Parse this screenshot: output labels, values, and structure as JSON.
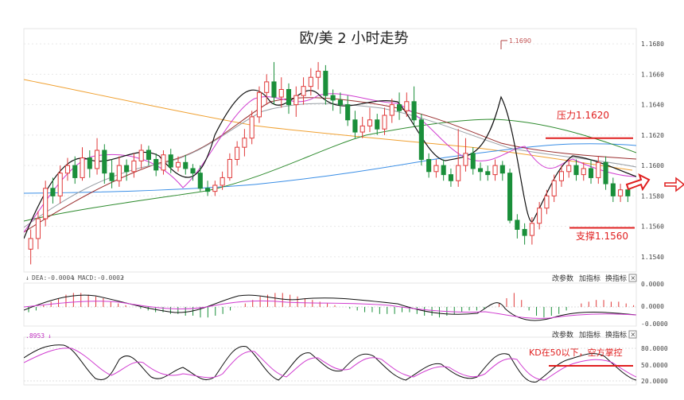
{
  "chart_data": {
    "type": "candlestick",
    "title": "欧/美 2 小时走势",
    "main": {
      "y_ticks": [
        "1.1680",
        "1.1660",
        "1.1640",
        "1.1620",
        "1.1600",
        "1.1580",
        "1.1560",
        "1.1540"
      ],
      "y_range": [
        1.153,
        1.169
      ],
      "high_marker": "1.1690",
      "resistance": {
        "label": "压力1.1620",
        "value": 1.1618
      },
      "support": {
        "label": "支撑1.1560",
        "value": 1.1559
      },
      "candles": [
        [
          1.1545,
          1.1552,
          1.1535,
          1.1558
        ],
        [
          1.1552,
          1.1565,
          1.1545,
          1.157
        ],
        [
          1.1565,
          1.1585,
          1.156,
          1.159
        ],
        [
          1.1585,
          1.158,
          1.1575,
          1.1592
        ],
        [
          1.158,
          1.1595,
          1.1575,
          1.16
        ],
        [
          1.1595,
          1.16,
          1.159,
          1.1605
        ],
        [
          1.16,
          1.1592,
          1.1588,
          1.1606
        ],
        [
          1.1592,
          1.1605,
          1.159,
          1.1612
        ],
        [
          1.1605,
          1.1598,
          1.1592,
          1.161
        ],
        [
          1.1598,
          1.161,
          1.1594,
          1.1618
        ],
        [
          1.161,
          1.1595,
          1.1588,
          1.1614
        ],
        [
          1.1595,
          1.159,
          1.1585,
          1.1604
        ],
        [
          1.159,
          1.16,
          1.1586,
          1.1606
        ],
        [
          1.16,
          1.1596,
          1.159,
          1.1604
        ],
        [
          1.1596,
          1.1603,
          1.1592,
          1.1608
        ],
        [
          1.1603,
          1.161,
          1.1598,
          1.1614
        ],
        [
          1.161,
          1.1604,
          1.16,
          1.1613
        ],
        [
          1.1604,
          1.1597,
          1.1593,
          1.1608
        ],
        [
          1.1597,
          1.1607,
          1.1594,
          1.161
        ],
        [
          1.1607,
          1.1599,
          1.1595,
          1.1611
        ],
        [
          1.1599,
          1.1602,
          1.1596,
          1.1606
        ],
        [
          1.1602,
          1.1598,
          1.1594,
          1.1607
        ],
        [
          1.1598,
          1.1595,
          1.159,
          1.1601
        ],
        [
          1.1595,
          1.1585,
          1.1583,
          1.16
        ],
        [
          1.1585,
          1.1583,
          1.158,
          1.159
        ],
        [
          1.1583,
          1.1587,
          1.158,
          1.159
        ],
        [
          1.1587,
          1.1592,
          1.1584,
          1.1596
        ],
        [
          1.1592,
          1.1604,
          1.159,
          1.1608
        ],
        [
          1.1604,
          1.1612,
          1.16,
          1.1616
        ],
        [
          1.1612,
          1.1618,
          1.1606,
          1.1624
        ],
        [
          1.1618,
          1.1632,
          1.1614,
          1.1636
        ],
        [
          1.1632,
          1.1648,
          1.1628,
          1.1652
        ],
        [
          1.1648,
          1.1655,
          1.164,
          1.166
        ],
        [
          1.1655,
          1.1645,
          1.164,
          1.1668
        ],
        [
          1.1645,
          1.165,
          1.1638,
          1.1658
        ],
        [
          1.165,
          1.164,
          1.1634,
          1.1654
        ],
        [
          1.164,
          1.1646,
          1.1632,
          1.1652
        ],
        [
          1.1646,
          1.1652,
          1.164,
          1.1658
        ],
        [
          1.1652,
          1.1658,
          1.1646,
          1.1664
        ],
        [
          1.1658,
          1.1662,
          1.165,
          1.1668
        ],
        [
          1.1662,
          1.1646,
          1.164,
          1.1666
        ],
        [
          1.1646,
          1.1643,
          1.1636,
          1.165
        ],
        [
          1.1643,
          1.164,
          1.1634,
          1.1648
        ],
        [
          1.164,
          1.163,
          1.1626,
          1.1646
        ],
        [
          1.163,
          1.1622,
          1.1618,
          1.1636
        ],
        [
          1.1622,
          1.1626,
          1.1618,
          1.1632
        ],
        [
          1.1626,
          1.163,
          1.1622,
          1.1638
        ],
        [
          1.163,
          1.1624,
          1.162,
          1.1634
        ],
        [
          1.1624,
          1.1633,
          1.162,
          1.1638
        ],
        [
          1.1633,
          1.164,
          1.1628,
          1.1644
        ],
        [
          1.164,
          1.1636,
          1.163,
          1.1648
        ],
        [
          1.1636,
          1.1642,
          1.1632,
          1.1648
        ],
        [
          1.1642,
          1.163,
          1.1626,
          1.1652
        ],
        [
          1.163,
          1.1604,
          1.16,
          1.1634
        ],
        [
          1.1604,
          1.1596,
          1.1592,
          1.1608
        ],
        [
          1.1596,
          1.16,
          1.1592,
          1.1604
        ],
        [
          1.16,
          1.1594,
          1.159,
          1.1604
        ],
        [
          1.1594,
          1.159,
          1.1586,
          1.1598
        ],
        [
          1.159,
          1.16,
          1.1586,
          1.1624
        ],
        [
          1.16,
          1.1608,
          1.1596,
          1.1618
        ],
        [
          1.1608,
          1.1598,
          1.1594,
          1.1612
        ],
        [
          1.1598,
          1.1596,
          1.159,
          1.1602
        ],
        [
          1.1596,
          1.1594,
          1.159,
          1.16
        ],
        [
          1.1594,
          1.16,
          1.159,
          1.1604
        ],
        [
          1.16,
          1.1595,
          1.159,
          1.1603
        ],
        [
          1.1595,
          1.1564,
          1.1562,
          1.1598
        ],
        [
          1.1564,
          1.1558,
          1.1552,
          1.1568
        ],
        [
          1.1558,
          1.1554,
          1.1548,
          1.1562
        ],
        [
          1.1554,
          1.1562,
          1.1548,
          1.1566
        ],
        [
          1.1562,
          1.1572,
          1.1558,
          1.1576
        ],
        [
          1.1572,
          1.158,
          1.1568,
          1.1584
        ],
        [
          1.158,
          1.159,
          1.1576,
          1.1594
        ],
        [
          1.159,
          1.1596,
          1.1586,
          1.16
        ],
        [
          1.1596,
          1.16,
          1.1592,
          1.1604
        ],
        [
          1.16,
          1.1594,
          1.159,
          1.1604
        ],
        [
          1.1594,
          1.1598,
          1.159,
          1.1602
        ],
        [
          1.1598,
          1.1592,
          1.1588,
          1.1604
        ],
        [
          1.1592,
          1.1602,
          1.1588,
          1.1606
        ],
        [
          1.1602,
          1.1588,
          1.1584,
          1.1606
        ],
        [
          1.1588,
          1.158,
          1.1576,
          1.1592
        ],
        [
          1.158,
          1.1584,
          1.1576,
          1.1588
        ],
        [
          1.1584,
          1.158,
          1.1576,
          1.1588
        ]
      ]
    },
    "macd": {
      "label_dea": "DEA:-0.0004",
      "label_macd": "MACD:-0.0002",
      "y_ticks": [
        "0.0000",
        "0.0000",
        "-0.0000"
      ],
      "buttons": [
        "改参数",
        "加指标",
        "换指标"
      ],
      "hist": [
        -3,
        -2,
        1,
        3,
        5,
        7,
        8,
        8,
        7,
        6,
        5,
        3,
        2,
        1,
        0,
        -1,
        -2,
        -3,
        -3,
        -4,
        -4,
        -5,
        -5,
        -6,
        -6,
        -5,
        -4,
        -2,
        0,
        2,
        4,
        6,
        7,
        8,
        8,
        7,
        6,
        5,
        4,
        3,
        2,
        1,
        0,
        -1,
        -2,
        -3,
        -3,
        -4,
        -4,
        -4,
        -3,
        -3,
        -4,
        -5,
        -5,
        -6,
        -5,
        -4,
        -3,
        -2,
        -2,
        -1,
        0,
        2,
        5,
        8,
        4,
        -2,
        -5,
        -6,
        -5,
        -4,
        -2,
        0,
        2,
        3,
        4,
        4,
        3,
        3,
        2,
        1
      ]
    },
    "kd": {
      "label_value": ".8953",
      "y_ticks": [
        "80.0000",
        "50.0000",
        "20.0000"
      ],
      "buttons": [
        "改参数",
        "加指标",
        "换指标"
      ],
      "note": "KD在50以下，空方掌控"
    }
  }
}
